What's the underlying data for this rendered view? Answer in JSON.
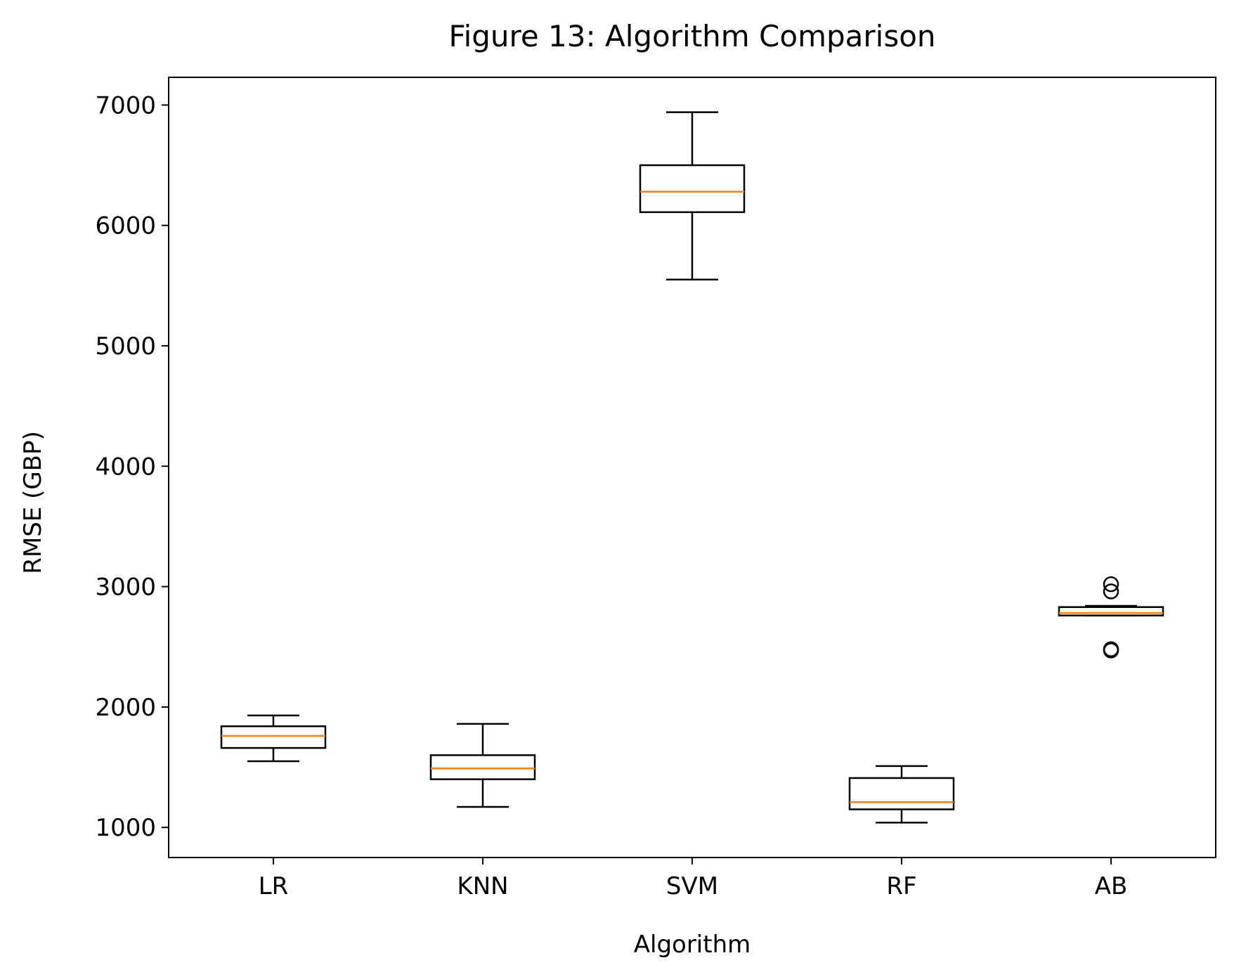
{
  "chart_data": {
    "type": "box",
    "title": "Figure 13: Algorithm Comparison",
    "xlabel": "Algorithm",
    "ylabel": "RMSE (GBP)",
    "categories": [
      "LR",
      "KNN",
      "SVM",
      "RF",
      "AB"
    ],
    "ylim": [
      750,
      7230
    ],
    "yticks": [
      1000,
      2000,
      3000,
      4000,
      5000,
      6000,
      7000
    ],
    "boxes": [
      {
        "label": "LR",
        "whisker_low": 1550,
        "q1": 1660,
        "median": 1760,
        "q3": 1840,
        "whisker_high": 1930,
        "outliers": []
      },
      {
        "label": "KNN",
        "whisker_low": 1170,
        "q1": 1400,
        "median": 1490,
        "q3": 1600,
        "whisker_high": 1860,
        "outliers": []
      },
      {
        "label": "SVM",
        "whisker_low": 5550,
        "q1": 6110,
        "median": 6280,
        "q3": 6500,
        "whisker_high": 6940,
        "outliers": []
      },
      {
        "label": "RF",
        "whisker_low": 1040,
        "q1": 1150,
        "median": 1210,
        "q3": 1410,
        "whisker_high": 1510,
        "outliers": []
      },
      {
        "label": "AB",
        "whisker_low": 2760,
        "q1": 2760,
        "median": 2780,
        "q3": 2830,
        "whisker_high": 2840,
        "outliers": [
          3020,
          2960,
          2480,
          2470
        ]
      }
    ],
    "grid": false,
    "colors": {
      "box": "#000000",
      "median": "#ff7f0e",
      "outlier": "#000000"
    }
  }
}
